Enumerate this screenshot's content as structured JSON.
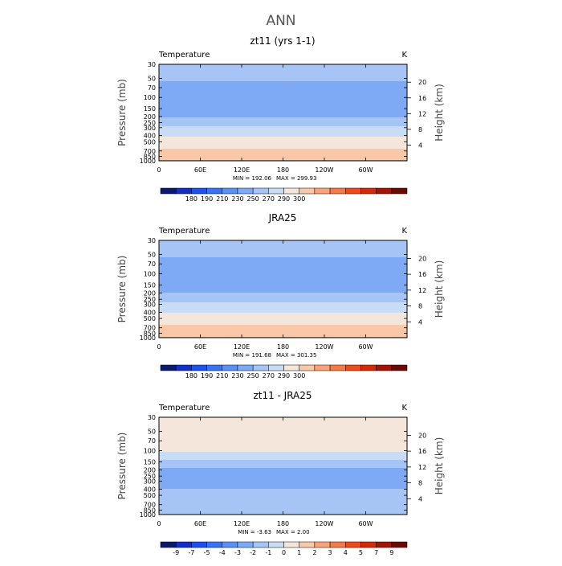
{
  "main_title": "ANN",
  "chart_data": [
    {
      "type": "heatmap",
      "title": "zt11 (yrs 1-1)",
      "variable": "Temperature",
      "units": "K",
      "ylabel": "Pressure (mb)",
      "y2label": "Height (km)",
      "pressure_ticks": [
        "30",
        "50",
        "70",
        "100",
        "150",
        "200",
        "250",
        "300",
        "400",
        "500",
        "700",
        "850",
        "1000"
      ],
      "height_ticks": [
        "20",
        "16",
        "12",
        "8",
        "4"
      ],
      "lon_ticks": [
        "0",
        "60E",
        "120E",
        "180",
        "120W",
        "60W"
      ],
      "min_text": "MIN = 192.06",
      "max_text": "MAX = 299.93",
      "colorbar_labels": [
        "180",
        "190",
        "210",
        "230",
        "250",
        "270",
        "290",
        "300"
      ],
      "colorbar_colors": [
        "#0a1a6e",
        "#1230c8",
        "#1e50f0",
        "#3a72f5",
        "#5a90f5",
        "#7ea9f5",
        "#a6c4f5",
        "#c8dcf5",
        "#f5e6dc",
        "#f8c8a8",
        "#f8a478",
        "#f47a48",
        "#f04a1a",
        "#d42a0a",
        "#a01505",
        "#6a0a02"
      ],
      "profile": [
        {
          "p": 30,
          "v": 222
        },
        {
          "p": 50,
          "v": 212
        },
        {
          "p": 70,
          "v": 206
        },
        {
          "p": 100,
          "v": 201
        },
        {
          "p": 150,
          "v": 200
        },
        {
          "p": 200,
          "v": 208
        },
        {
          "p": 250,
          "v": 222
        },
        {
          "p": 300,
          "v": 233
        },
        {
          "p": 400,
          "v": 248
        },
        {
          "p": 500,
          "v": 259
        },
        {
          "p": 700,
          "v": 274
        },
        {
          "p": 850,
          "v": 283
        },
        {
          "p": 1000,
          "v": 291
        }
      ]
    },
    {
      "type": "heatmap",
      "title": "JRA25",
      "variable": "Temperature",
      "units": "K",
      "ylabel": "Pressure (mb)",
      "y2label": "Height (km)",
      "pressure_ticks": [
        "30",
        "50",
        "70",
        "100",
        "150",
        "200",
        "250",
        "300",
        "400",
        "500",
        "700",
        "850",
        "1000"
      ],
      "height_ticks": [
        "20",
        "16",
        "12",
        "8",
        "4"
      ],
      "lon_ticks": [
        "0",
        "60E",
        "120E",
        "180",
        "120W",
        "60W"
      ],
      "min_text": "MIN = 191.68",
      "max_text": "MAX = 301.35",
      "colorbar_labels": [
        "180",
        "190",
        "210",
        "230",
        "250",
        "270",
        "290",
        "300"
      ],
      "colorbar_colors": [
        "#0a1a6e",
        "#1230c8",
        "#1e50f0",
        "#3a72f5",
        "#5a90f5",
        "#7ea9f5",
        "#a6c4f5",
        "#c8dcf5",
        "#f5e6dc",
        "#f8c8a8",
        "#f8a478",
        "#f47a48",
        "#f04a1a",
        "#d42a0a",
        "#a01505",
        "#6a0a02"
      ],
      "profile": [
        {
          "p": 30,
          "v": 222
        },
        {
          "p": 50,
          "v": 212
        },
        {
          "p": 70,
          "v": 206
        },
        {
          "p": 100,
          "v": 201
        },
        {
          "p": 150,
          "v": 202
        },
        {
          "p": 200,
          "v": 210
        },
        {
          "p": 250,
          "v": 223
        },
        {
          "p": 300,
          "v": 234
        },
        {
          "p": 400,
          "v": 249
        },
        {
          "p": 500,
          "v": 260
        },
        {
          "p": 700,
          "v": 275
        },
        {
          "p": 850,
          "v": 284
        },
        {
          "p": 1000,
          "v": 292
        }
      ]
    },
    {
      "type": "heatmap",
      "title": "zt11 - JRA25",
      "variable": "Temperature",
      "units": "K",
      "ylabel": "Pressure (mb)",
      "y2label": "Height (km)",
      "pressure_ticks": [
        "30",
        "50",
        "70",
        "100",
        "150",
        "200",
        "250",
        "300",
        "400",
        "500",
        "700",
        "850",
        "1000"
      ],
      "height_ticks": [
        "20",
        "16",
        "12",
        "8",
        "4"
      ],
      "lon_ticks": [
        "0",
        "60E",
        "120E",
        "180",
        "120W",
        "60W"
      ],
      "min_text": "MIN =   -3.63",
      "max_text": "MAX =    2.00",
      "colorbar_labels": [
        "-9",
        "-7",
        "-5",
        "-4",
        "-3",
        "-2",
        "-1",
        "0",
        "1",
        "2",
        "3",
        "4",
        "5",
        "7",
        "9"
      ],
      "colorbar_colors": [
        "#0a1a6e",
        "#1230c8",
        "#1e50f0",
        "#3a72f5",
        "#5a90f5",
        "#7ea9f5",
        "#a6c4f5",
        "#c8dcf5",
        "#f5e6dc",
        "#f8c8a8",
        "#f8a478",
        "#f47a48",
        "#f04a1a",
        "#d42a0a",
        "#a01505",
        "#6a0a02"
      ],
      "profile": [
        {
          "p": 30,
          "v": 0.6
        },
        {
          "p": 50,
          "v": 0.3
        },
        {
          "p": 70,
          "v": 0.4
        },
        {
          "p": 100,
          "v": 0.2
        },
        {
          "p": 150,
          "v": -1.3
        },
        {
          "p": 200,
          "v": -2.2
        },
        {
          "p": 250,
          "v": -2.6
        },
        {
          "p": 300,
          "v": -2.5
        },
        {
          "p": 400,
          "v": -2.0
        },
        {
          "p": 500,
          "v": -1.6
        },
        {
          "p": 700,
          "v": -1.2
        },
        {
          "p": 850,
          "v": -1.6
        },
        {
          "p": 1000,
          "v": -1.8
        }
      ]
    }
  ]
}
